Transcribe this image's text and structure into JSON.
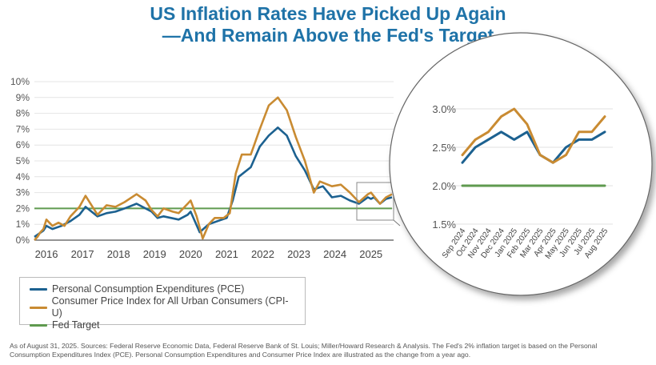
{
  "title_line1": "US Inflation Rates Have Picked Up Again",
  "title_line2": "—And Remain Above the Fed's Target",
  "colors": {
    "title": "#1f73a8",
    "pce": "#1c6190",
    "cpi": "#c98b32",
    "fed": "#5f9a4f"
  },
  "legend": [
    "Personal Consumption Expenditures (PCE)",
    "Consumer Price Index for All Urban Consumers (CPI-U)",
    "Fed Target"
  ],
  "footnote_line1": "As of August 31, 2025. Sources: Federal Reserve Economic Data, Federal Reserve Bank of St. Louis; Miller/Howard Research & Analysis. The Fed's 2% inflation target is based on the Personal",
  "footnote_line2": "Consumption Expenditures Index (PCE). Personal Consumption Expenditures and Consumer Price Index are illustrated as the change from a year ago.",
  "chart_data": [
    {
      "type": "line",
      "x_range": [
        "2015-09",
        "2025-08"
      ],
      "ylim": [
        0,
        10
      ],
      "yticks": [
        "0%",
        "1%",
        "2%",
        "3%",
        "4%",
        "5%",
        "6%",
        "7%",
        "8%",
        "9%",
        "10%"
      ],
      "xticks": [
        "2016",
        "2017",
        "2018",
        "2019",
        "2020",
        "2021",
        "2022",
        "2023",
        "2024",
        "2025"
      ],
      "grid": true,
      "legend_placement": "bottom-left",
      "series": [
        {
          "name": "Personal Consumption Expenditures (PCE)",
          "points": [
            [
              "2015-09",
              0.2
            ],
            [
              "2015-12",
              0.6
            ],
            [
              "2016-01",
              0.9
            ],
            [
              "2016-03",
              0.7
            ],
            [
              "2016-06",
              0.9
            ],
            [
              "2016-09",
              1.2
            ],
            [
              "2016-12",
              1.6
            ],
            [
              "2017-02",
              2.1
            ],
            [
              "2017-06",
              1.5
            ],
            [
              "2017-09",
              1.7
            ],
            [
              "2017-12",
              1.8
            ],
            [
              "2018-03",
              2.0
            ],
            [
              "2018-07",
              2.3
            ],
            [
              "2018-12",
              1.8
            ],
            [
              "2019-02",
              1.4
            ],
            [
              "2019-04",
              1.5
            ],
            [
              "2019-09",
              1.3
            ],
            [
              "2019-12",
              1.6
            ],
            [
              "2020-01",
              1.8
            ],
            [
              "2020-04",
              0.5
            ],
            [
              "2020-07",
              1.0
            ],
            [
              "2020-10",
              1.2
            ],
            [
              "2021-01",
              1.4
            ],
            [
              "2021-03",
              2.5
            ],
            [
              "2021-05",
              4.0
            ],
            [
              "2021-09",
              4.6
            ],
            [
              "2021-12",
              5.9
            ],
            [
              "2022-03",
              6.6
            ],
            [
              "2022-06",
              7.1
            ],
            [
              "2022-09",
              6.6
            ],
            [
              "2022-12",
              5.3
            ],
            [
              "2023-03",
              4.4
            ],
            [
              "2023-06",
              3.2
            ],
            [
              "2023-09",
              3.4
            ],
            [
              "2023-12",
              2.7
            ],
            [
              "2024-03",
              2.8
            ],
            [
              "2024-06",
              2.5
            ],
            [
              "2024-09",
              2.3
            ],
            [
              "2024-12",
              2.7
            ],
            [
              "2025-01",
              2.6
            ],
            [
              "2025-02",
              2.7
            ],
            [
              "2025-04",
              2.3
            ],
            [
              "2025-06",
              2.6
            ],
            [
              "2025-08",
              2.7
            ]
          ]
        },
        {
          "name": "Consumer Price Index for All Urban Consumers (CPI-U)",
          "points": [
            [
              "2015-09",
              0.0
            ],
            [
              "2015-10",
              0.2
            ],
            [
              "2015-11",
              0.5
            ],
            [
              "2015-12",
              0.7
            ],
            [
              "2016-01",
              1.3
            ],
            [
              "2016-03",
              0.9
            ],
            [
              "2016-05",
              1.1
            ],
            [
              "2016-07",
              0.9
            ],
            [
              "2016-09",
              1.5
            ],
            [
              "2016-12",
              2.1
            ],
            [
              "2017-02",
              2.8
            ],
            [
              "2017-04",
              2.2
            ],
            [
              "2017-06",
              1.6
            ],
            [
              "2017-09",
              2.2
            ],
            [
              "2017-12",
              2.1
            ],
            [
              "2018-03",
              2.4
            ],
            [
              "2018-07",
              2.9
            ],
            [
              "2018-10",
              2.5
            ],
            [
              "2018-12",
              1.9
            ],
            [
              "2019-02",
              1.5
            ],
            [
              "2019-04",
              2.0
            ],
            [
              "2019-07",
              1.8
            ],
            [
              "2019-09",
              1.7
            ],
            [
              "2019-12",
              2.3
            ],
            [
              "2020-01",
              2.5
            ],
            [
              "2020-03",
              1.5
            ],
            [
              "2020-05",
              0.1
            ],
            [
              "2020-07",
              1.0
            ],
            [
              "2020-09",
              1.4
            ],
            [
              "2020-12",
              1.4
            ],
            [
              "2021-02",
              1.7
            ],
            [
              "2021-04",
              4.2
            ],
            [
              "2021-06",
              5.4
            ],
            [
              "2021-09",
              5.4
            ],
            [
              "2021-12",
              7.0
            ],
            [
              "2022-03",
              8.5
            ],
            [
              "2022-06",
              9.0
            ],
            [
              "2022-09",
              8.2
            ],
            [
              "2022-12",
              6.5
            ],
            [
              "2023-03",
              5.0
            ],
            [
              "2023-06",
              3.0
            ],
            [
              "2023-08",
              3.7
            ],
            [
              "2023-12",
              3.4
            ],
            [
              "2024-03",
              3.5
            ],
            [
              "2024-06",
              3.0
            ],
            [
              "2024-09",
              2.4
            ],
            [
              "2024-12",
              2.9
            ],
            [
              "2025-01",
              3.0
            ],
            [
              "2025-04",
              2.3
            ],
            [
              "2025-06",
              2.7
            ],
            [
              "2025-08",
              2.9
            ]
          ]
        },
        {
          "name": "Fed Target",
          "points": [
            [
              "2015-09",
              2.0
            ],
            [
              "2025-08",
              2.0
            ]
          ]
        }
      ]
    },
    {
      "type": "line",
      "categories": [
        "Sep 2024",
        "Oct 2024",
        "Nov 2024",
        "Dec 2024",
        "Jan 2025",
        "Feb 2025",
        "Mar 2025",
        "Apr 2025",
        "May 2025",
        "Jun 2025",
        "Jul 2025",
        "Aug 2025"
      ],
      "ylim": [
        1.5,
        3.0
      ],
      "yticks": [
        "1.5%",
        "2.0%",
        "2.5%",
        "3.0%"
      ],
      "grid": true,
      "series": [
        {
          "name": "Personal Consumption Expenditures (PCE)",
          "values": [
            2.3,
            2.5,
            2.6,
            2.7,
            2.6,
            2.7,
            2.4,
            2.3,
            2.5,
            2.6,
            2.6,
            2.7
          ]
        },
        {
          "name": "Consumer Price Index for All Urban Consumers (CPI-U)",
          "values": [
            2.4,
            2.6,
            2.7,
            2.9,
            3.0,
            2.8,
            2.4,
            2.3,
            2.4,
            2.7,
            2.7,
            2.9
          ]
        },
        {
          "name": "Fed Target",
          "values": [
            2.0,
            2.0,
            2.0,
            2.0,
            2.0,
            2.0,
            2.0,
            2.0,
            2.0,
            2.0,
            2.0,
            2.0
          ]
        }
      ]
    }
  ]
}
